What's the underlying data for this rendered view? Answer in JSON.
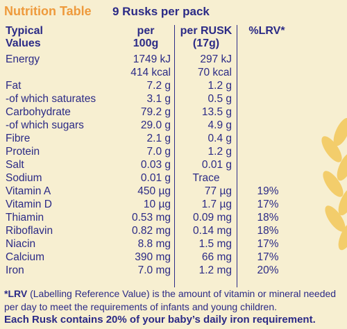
{
  "header": {
    "title": "Nutrition Table",
    "pack": "9 Rusks per pack"
  },
  "columns": {
    "typical": [
      "Typical",
      "Values"
    ],
    "per100": [
      "per",
      "100g"
    ],
    "per_rusk": [
      "per RUSK",
      "(17g)"
    ],
    "lrv": "%LRV*"
  },
  "rows": [
    {
      "name": "Energy",
      "per100": "1749 kJ",
      "per_rusk": "297 kJ",
      "lrv": ""
    },
    {
      "name": "",
      "per100": "414 kcal",
      "per_rusk": "70 kcal",
      "lrv": ""
    },
    {
      "name": "Fat",
      "per100": "7.2 g",
      "per_rusk": "1.2 g",
      "lrv": ""
    },
    {
      "name": "-of which saturates",
      "per100": "3.1 g",
      "per_rusk": "0.5 g",
      "lrv": ""
    },
    {
      "name": "Carbohydrate",
      "per100": "79.2 g",
      "per_rusk": "13.5 g",
      "lrv": ""
    },
    {
      "name": "-of which sugars",
      "per100": "29.0 g",
      "per_rusk": "4.9 g",
      "lrv": ""
    },
    {
      "name": "Fibre",
      "per100": "2.1 g",
      "per_rusk": "0.4 g",
      "lrv": ""
    },
    {
      "name": "Protein",
      "per100": "7.0 g",
      "per_rusk": "1.2 g",
      "lrv": ""
    },
    {
      "name": "Salt",
      "per100": "0.03 g",
      "per_rusk": "0.01 g",
      "lrv": ""
    },
    {
      "name": "Sodium",
      "per100": "0.01 g",
      "per_rusk": "Trace",
      "lrv": ""
    },
    {
      "name": "Vitamin A",
      "per100": "450 µg",
      "per_rusk": "77 µg",
      "lrv": "19%"
    },
    {
      "name": "Vitamin D",
      "per100": "10 µg",
      "per_rusk": "1.7 µg",
      "lrv": "17%"
    },
    {
      "name": "Thiamin",
      "per100": "0.53 mg",
      "per_rusk": "0.09 mg",
      "lrv": "18%"
    },
    {
      "name": "Riboflavin",
      "per100": "0.82 mg",
      "per_rusk": "0.14 mg",
      "lrv": "18%"
    },
    {
      "name": "Niacin",
      "per100": "8.8 mg",
      "per_rusk": "1.5 mg",
      "lrv": "17%"
    },
    {
      "name": "Calcium",
      "per100": "390 mg",
      "per_rusk": "66 mg",
      "lrv": "17%"
    },
    {
      "name": "Iron",
      "per100": "7.0 mg",
      "per_rusk": "1.2 mg",
      "lrv": "20%"
    }
  ],
  "footnote": {
    "lrv_bold": "*LRV",
    "lrv_text": " (Labelling Reference Value) is the amount of vitamin or mineral needed per day to meet the requirements of infants and young children.",
    "iron_statement": "Each Rusk contains 20% of your baby’s daily iron requirement."
  },
  "colors": {
    "background": "#f7efd1",
    "text": "#2b2a86",
    "title": "#ee9a3c",
    "wheat": "#f3c85a"
  }
}
